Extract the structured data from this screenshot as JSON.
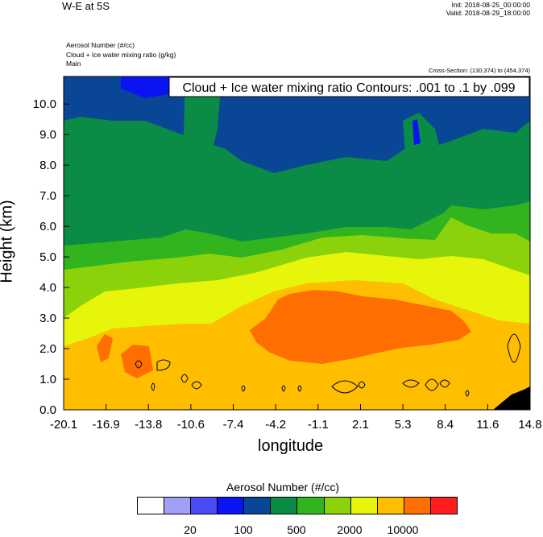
{
  "header": {
    "title": "W-E at 5S",
    "init": "Init: 2018-08-25_00:00:00",
    "valid": "Valid: 2018-08-29_18:00:00",
    "field1": "Aerosol Number   (#/cc)",
    "field2": "Cloud + Ice water mixing ratio   (g/kg)",
    "field3": "Main",
    "cross_section": "Cross-Section: (130,374) to (454,374)"
  },
  "chart_data": {
    "type": "heatmap",
    "title": "W-E at 5S",
    "annotation": "Cloud + Ice water mixing ratio Contours: .001 to .1 by .099",
    "xlabel": "longitude",
    "ylabel": "Height (km)",
    "xticks": [
      "-20.1",
      "-16.9",
      "-13.8",
      "-10.6",
      "-7.4",
      "-4.2",
      "-1.1",
      "2.1",
      "5.3",
      "8.4",
      "11.6",
      "14.8"
    ],
    "yticks": [
      "0.0",
      "1.0",
      "2.0",
      "3.0",
      "4.0",
      "5.0",
      "6.0",
      "7.0",
      "8.0",
      "9.0",
      "10.0"
    ],
    "xlim": [
      -20.1,
      14.8
    ],
    "ylim": [
      0,
      10.9
    ],
    "colorbar": {
      "title": "Aerosol Number  (#/cc)",
      "colors": [
        "#ffffff",
        "#a0a0f5",
        "#4b4bf5",
        "#0a14f0",
        "#0a4696",
        "#0a8c46",
        "#32b41e",
        "#8cd20a",
        "#e6f50a",
        "#ffbe00",
        "#ff6e00",
        "#ff1e1e"
      ],
      "labels": [
        "20",
        "100",
        "500",
        "2000",
        "10000"
      ]
    }
  }
}
